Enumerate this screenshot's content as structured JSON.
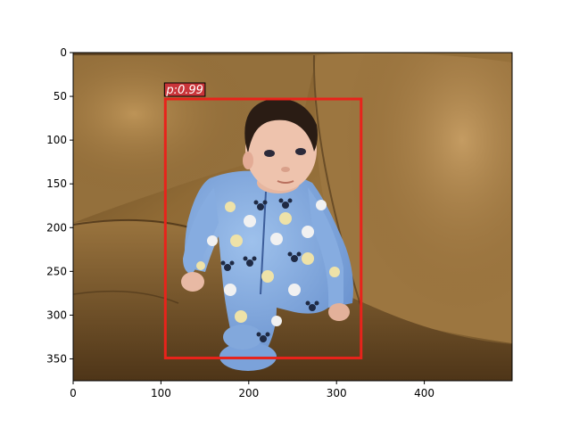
{
  "figure": {
    "image_subject": "photo of a baby in a blue Mickey-print onesie sitting on a brown leather couch",
    "x_ticks": [
      "0",
      "100",
      "200",
      "300",
      "400"
    ],
    "y_ticks": [
      "0",
      "50",
      "100",
      "150",
      "200",
      "250",
      "300",
      "350"
    ]
  },
  "detection": {
    "label": "p:0.99",
    "score": 0.99,
    "box_color": "#e8231b",
    "label_bg": "#c9353a",
    "box": {
      "x0": 105,
      "y0": 53,
      "x1": 328,
      "y1": 349
    }
  },
  "image": {
    "width": 500,
    "height": 375
  }
}
